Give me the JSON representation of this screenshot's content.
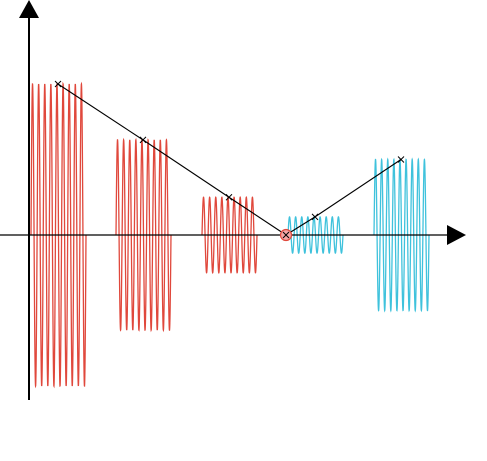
{
  "colors": {
    "background": "#ffffff",
    "axis": "#000000",
    "left_waves": "#e0483c",
    "right_waves": "#3fc2dc",
    "connector": "#000000",
    "center_marker_fill": "#f4a6a6",
    "center_marker_stroke": "#e0483c"
  },
  "diagram": {
    "description_type": "wave-packets-along-axis",
    "packets": [
      {
        "id": "packet-1",
        "group": "left",
        "relative_amplitude": 1.0,
        "cycles": 9
      },
      {
        "id": "packet-2",
        "group": "left",
        "relative_amplitude": 0.63,
        "cycles": 9
      },
      {
        "id": "packet-3",
        "group": "left",
        "relative_amplitude": 0.25,
        "cycles": 9
      },
      {
        "id": "packet-4",
        "group": "right",
        "relative_amplitude": 0.12,
        "cycles": 9
      },
      {
        "id": "packet-5",
        "group": "right",
        "relative_amplitude": 0.5,
        "cycles": 9
      }
    ],
    "connector_points": [
      {
        "label": "",
        "packet": "packet-1",
        "relative_height": 1.0
      },
      {
        "label": "",
        "packet": "packet-2",
        "relative_height": 0.63
      },
      {
        "label": "",
        "packet": "packet-3",
        "relative_height": 0.25
      },
      {
        "label": "",
        "packet": "center",
        "relative_height": 0.0
      },
      {
        "label": "",
        "packet": "packet-4",
        "relative_height": 0.12
      },
      {
        "label": "",
        "packet": "packet-5",
        "relative_height": 0.5
      }
    ],
    "axes": {
      "x_arrow": true,
      "y_arrow": true
    }
  }
}
